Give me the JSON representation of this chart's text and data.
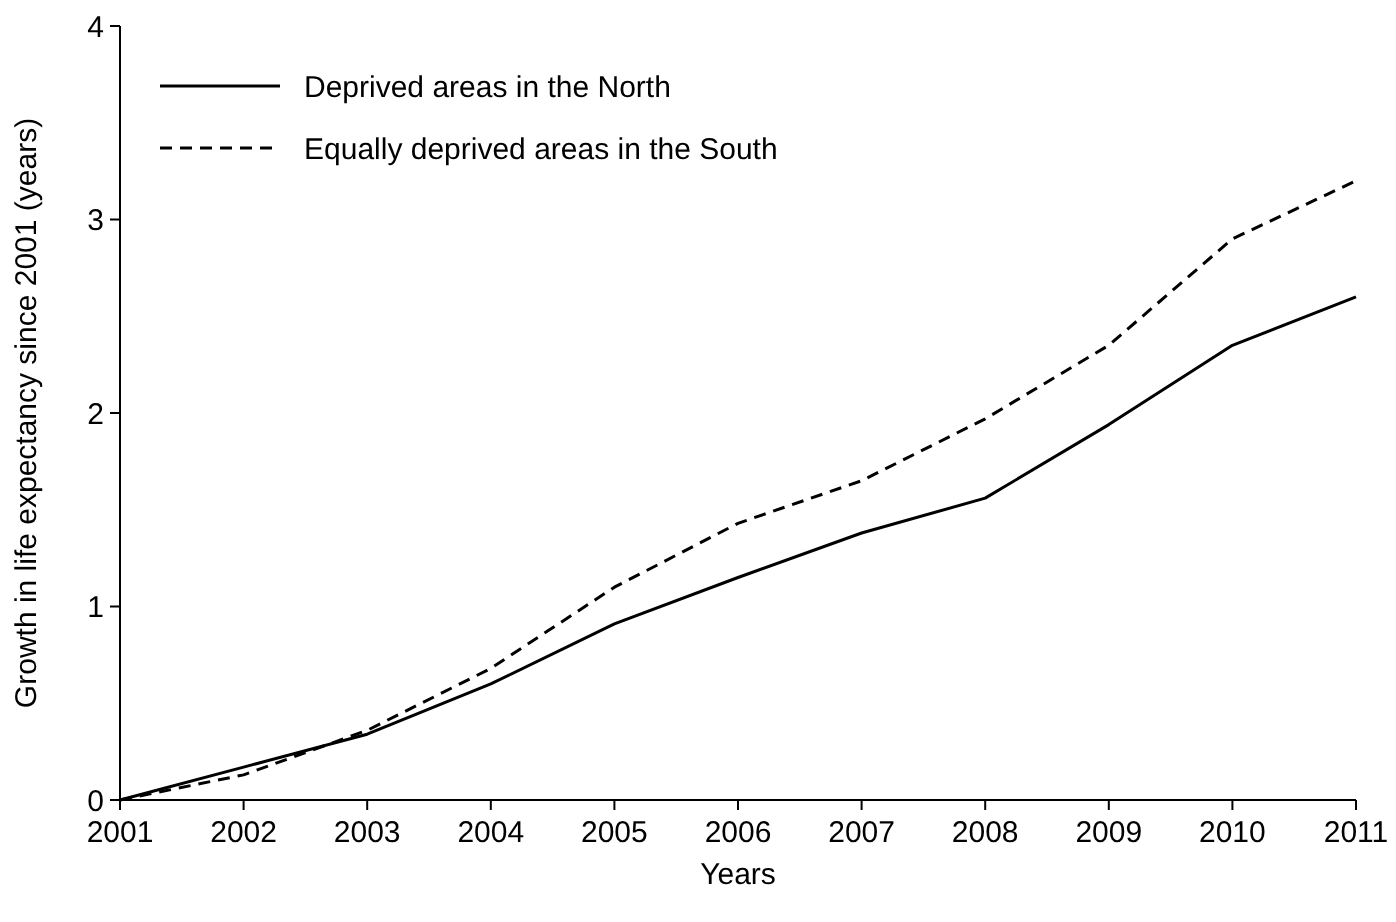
{
  "chart_data": {
    "type": "line",
    "xlabel": "Years",
    "ylabel": "Growth in life expectancy since 2001 (years)",
    "x": [
      2001,
      2002,
      2003,
      2004,
      2005,
      2006,
      2007,
      2008,
      2009,
      2010,
      2011
    ],
    "series": [
      {
        "name": "Deprived areas in the North",
        "color": "#000000",
        "line_style": "solid",
        "values": [
          0,
          0.17,
          0.34,
          0.6,
          0.91,
          1.15,
          1.38,
          1.56,
          1.94,
          2.35,
          2.6
        ]
      },
      {
        "name": "Equally deprived areas in the South",
        "color": "#000000",
        "line_style": "dashed",
        "values": [
          0,
          0.13,
          0.36,
          0.68,
          1.1,
          1.43,
          1.65,
          1.97,
          2.35,
          2.9,
          3.2
        ]
      }
    ],
    "xlim": [
      2001,
      2011
    ],
    "xticks": [
      2001,
      2002,
      2003,
      2004,
      2005,
      2006,
      2007,
      2008,
      2009,
      2010,
      2011
    ],
    "ylim": [
      0,
      4
    ],
    "yticks": [
      0,
      1,
      2,
      3,
      4
    ],
    "legend": "top left",
    "grid": false
  }
}
